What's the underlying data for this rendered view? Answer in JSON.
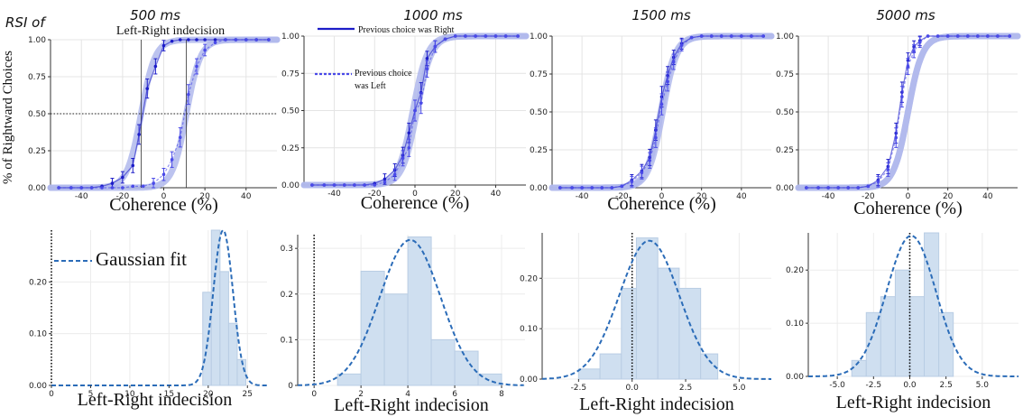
{
  "header": {
    "rsi_label": "RSI of",
    "titles": [
      "500 ms",
      "1000 ms",
      "1500 ms",
      "5000 ms"
    ]
  },
  "annotations": {
    "indecision_label": "Left-Right indecision",
    "legend_right": "Previous choice was Right",
    "legend_left_line1": "Previous choice",
    "legend_left_line2": "was Left",
    "gaussian_fit": "Gaussian fit"
  },
  "colors": {
    "right_series": "#1c1cc8",
    "left_series": "#4a4ae8",
    "fit_band": "#b0b8ec",
    "hist_fill": "#cfdff0",
    "hist_edge": "#b9cde4",
    "gauss": "#2b6cb8"
  },
  "chart_data": [
    {
      "type": "line",
      "panel": "psych",
      "rsi": "500 ms",
      "xlabel": "Coherence (%)",
      "ylabel": "% of Rightward Choices",
      "xlim": [
        -55,
        55
      ],
      "ylim": [
        0,
        1
      ],
      "xticks": [
        -40,
        -20,
        0,
        20,
        40
      ],
      "yticks": [
        "0.00",
        "0.25",
        "0.50",
        "0.75",
        "1.00"
      ],
      "grid": true,
      "shift": 11,
      "series": [
        {
          "name": "Previous choice was Right",
          "style": "solid",
          "x": [
            -51,
            -45,
            -40,
            -35,
            -30,
            -25,
            -20,
            -15,
            -12,
            -8,
            -4,
            0,
            4,
            8,
            12,
            16,
            20,
            25,
            30,
            35,
            40,
            45,
            51
          ],
          "y": [
            0.0,
            0.0,
            0.0,
            0.0,
            0.01,
            0.03,
            0.07,
            0.15,
            0.36,
            0.67,
            0.82,
            0.96,
            0.99,
            1.0,
            1.0,
            1.0,
            1.0,
            1.0,
            1.0,
            1.0,
            1.0,
            1.0,
            1.0
          ]
        },
        {
          "name": "Previous choice was Left",
          "style": "dashed",
          "x": [
            -51,
            -45,
            -40,
            -35,
            -30,
            -25,
            -20,
            -15,
            -10,
            -5,
            0,
            4,
            8,
            12,
            16,
            20,
            25,
            30,
            35,
            40,
            45,
            51
          ],
          "y": [
            0.0,
            0.0,
            0.0,
            0.0,
            0.0,
            0.0,
            0.0,
            0.01,
            0.01,
            0.03,
            0.09,
            0.19,
            0.34,
            0.63,
            0.82,
            0.93,
            0.98,
            1.0,
            1.0,
            1.0,
            1.0,
            1.0
          ]
        }
      ]
    },
    {
      "type": "line",
      "panel": "psych",
      "rsi": "1000 ms",
      "xlabel": "Coherence (%)",
      "ylabel": "",
      "xlim": [
        -55,
        55
      ],
      "ylim": [
        0,
        1
      ],
      "xticks": [
        -40,
        -20,
        0,
        20,
        40
      ],
      "yticks": [
        "0.00",
        "0.25",
        "0.50",
        "0.75",
        "1.00"
      ],
      "grid": true,
      "shift": 2,
      "series": [
        {
          "name": "Previous choice was Right",
          "style": "solid",
          "x": [
            -51,
            -45,
            -40,
            -35,
            -30,
            -25,
            -20,
            -15,
            -10,
            -6,
            -3,
            0,
            3,
            6,
            10,
            15,
            20,
            25,
            30,
            35,
            40,
            45,
            51
          ],
          "y": [
            0.0,
            0.0,
            0.0,
            0.0,
            0.0,
            0.0,
            0.01,
            0.04,
            0.1,
            0.2,
            0.35,
            0.5,
            0.62,
            0.85,
            0.93,
            0.98,
            1.0,
            1.0,
            1.0,
            1.0,
            1.0,
            1.0,
            1.0
          ]
        },
        {
          "name": "Previous choice was Left",
          "style": "dashed",
          "x": [
            -51,
            -45,
            -40,
            -35,
            -30,
            -25,
            -20,
            -15,
            -10,
            -6,
            -3,
            0,
            3,
            6,
            10,
            15,
            20,
            25,
            30,
            35,
            40,
            45,
            51
          ],
          "y": [
            0.0,
            0.0,
            0.0,
            0.0,
            0.0,
            0.0,
            0.0,
            0.02,
            0.07,
            0.18,
            0.25,
            0.5,
            0.55,
            0.78,
            0.93,
            0.98,
            1.0,
            1.0,
            1.0,
            1.0,
            1.0,
            1.0,
            1.0
          ]
        }
      ]
    },
    {
      "type": "line",
      "panel": "psych",
      "rsi": "1500 ms",
      "xlabel": "Coherence (%)",
      "ylabel": "",
      "xlim": [
        -55,
        55
      ],
      "ylim": [
        0,
        1
      ],
      "xticks": [
        -40,
        -20,
        0,
        20,
        40
      ],
      "yticks": [
        "0.00",
        "0.25",
        "0.50",
        "0.75",
        "1.00"
      ],
      "grid": true,
      "shift": 1,
      "series": [
        {
          "name": "Previous choice was Right",
          "style": "solid",
          "x": [
            -51,
            -45,
            -40,
            -35,
            -30,
            -25,
            -20,
            -15,
            -10,
            -6,
            -3,
            0,
            3,
            6,
            10,
            15,
            20,
            25,
            30,
            35,
            40,
            45,
            51
          ],
          "y": [
            0.0,
            0.0,
            0.0,
            0.0,
            0.0,
            0.0,
            0.01,
            0.05,
            0.11,
            0.2,
            0.38,
            0.6,
            0.74,
            0.86,
            0.95,
            0.99,
            1.0,
            1.0,
            1.0,
            1.0,
            1.0,
            1.0,
            1.0
          ]
        },
        {
          "name": "Previous choice was Left",
          "style": "dashed",
          "x": [
            -51,
            -45,
            -40,
            -35,
            -30,
            -25,
            -20,
            -15,
            -10,
            -6,
            -3,
            0,
            3,
            6,
            10,
            15,
            20,
            25,
            30,
            35,
            40,
            45,
            51
          ],
          "y": [
            0.0,
            0.0,
            0.0,
            0.0,
            0.0,
            0.0,
            0.01,
            0.04,
            0.1,
            0.18,
            0.33,
            0.55,
            0.7,
            0.83,
            0.94,
            0.99,
            1.0,
            1.0,
            1.0,
            1.0,
            1.0,
            1.0,
            1.0
          ]
        }
      ]
    },
    {
      "type": "line",
      "panel": "psych",
      "rsi": "5000 ms",
      "xlabel": "Coherence (%)",
      "ylabel": "",
      "xlim": [
        -55,
        55
      ],
      "ylim": [
        0,
        1
      ],
      "xticks": [
        -40,
        -20,
        0,
        20,
        40
      ],
      "yticks": [
        "0.00",
        "0.25",
        "0.50",
        "0.75",
        "1.00"
      ],
      "grid": true,
      "shift": 0,
      "series": [
        {
          "name": "Previous choice was Right",
          "style": "solid",
          "x": [
            -51,
            -45,
            -40,
            -35,
            -30,
            -25,
            -20,
            -15,
            -10,
            -6,
            -3,
            0,
            3,
            6,
            10,
            15,
            20,
            25,
            30,
            35,
            40,
            45,
            51
          ],
          "y": [
            0.0,
            0.0,
            0.0,
            0.0,
            0.0,
            0.0,
            0.01,
            0.05,
            0.14,
            0.36,
            0.63,
            0.84,
            0.93,
            0.97,
            1.0,
            1.0,
            1.0,
            1.0,
            1.0,
            1.0,
            1.0,
            1.0,
            1.0
          ]
        },
        {
          "name": "Previous choice was Left",
          "style": "dashed",
          "x": [
            -51,
            -45,
            -40,
            -35,
            -30,
            -25,
            -20,
            -15,
            -10,
            -6,
            -3,
            0,
            3,
            6,
            10,
            15,
            20,
            25,
            30,
            35,
            40,
            45,
            51
          ],
          "y": [
            0.0,
            0.0,
            0.0,
            0.0,
            0.0,
            0.0,
            0.01,
            0.04,
            0.12,
            0.33,
            0.6,
            0.8,
            0.9,
            0.96,
            1.0,
            1.0,
            1.0,
            1.0,
            1.0,
            1.0,
            1.0,
            1.0,
            1.0
          ]
        }
      ]
    },
    {
      "type": "bar",
      "panel": "hist",
      "rsi": "500 ms",
      "xlabel": "Left-Right indecision",
      "xlim": [
        0,
        27.5
      ],
      "ylim": [
        0,
        0.3
      ],
      "xticks": [
        0,
        5,
        10,
        15,
        20,
        25
      ],
      "yticks": [
        0.0,
        0.1,
        0.2
      ],
      "ytick_labels": [
        "0.00",
        "0.10",
        "0.20"
      ],
      "bin_edges": [
        19.3,
        20.4,
        21.5,
        22.6,
        23.7,
        24.8
      ],
      "values": [
        0.18,
        0.3,
        0.22,
        0.12,
        0.05
      ],
      "gauss": {
        "mu": 21.9,
        "sigma": 1.25
      },
      "zero_line": 0
    },
    {
      "type": "bar",
      "panel": "hist",
      "rsi": "1000 ms",
      "xlabel": "Left-Right indecision",
      "xlim": [
        -0.7,
        9.0
      ],
      "ylim": [
        0,
        0.33
      ],
      "xticks": [
        0,
        2,
        4,
        6,
        8
      ],
      "yticks": [
        0.0,
        0.1,
        0.2,
        0.3
      ],
      "ytick_labels": [
        "0",
        "0.1",
        "0.2",
        "0.3"
      ],
      "bin_edges": [
        1.0,
        2.0,
        3.0,
        4.0,
        5.0,
        6.0,
        7.0,
        8.0
      ],
      "values": [
        0.025,
        0.25,
        0.2,
        0.325,
        0.1,
        0.075,
        0.025
      ],
      "gauss": {
        "mu": 4.1,
        "sigma": 1.3
      },
      "zero_line": 0
    },
    {
      "type": "bar",
      "panel": "hist",
      "rsi": "1500 ms",
      "xlabel": "Left-Right indecision",
      "xlim": [
        -4.2,
        6.5
      ],
      "ylim": [
        0,
        0.29
      ],
      "xticks": [
        -2.5,
        0.0,
        2.5,
        5.0
      ],
      "yticks": [
        0.0,
        0.1,
        0.2
      ],
      "ytick_labels": [
        "0.00",
        "0.10",
        "0.20"
      ],
      "bin_edges": [
        -2.5,
        -1.5,
        -0.5,
        0.2,
        1.2,
        2.2,
        3.2,
        4.0
      ],
      "values": [
        0.02,
        0.05,
        0.18,
        0.28,
        0.22,
        0.18,
        0.05
      ],
      "gauss": {
        "mu": 0.8,
        "sigma": 1.4
      },
      "zero_line": 0
    },
    {
      "type": "bar",
      "panel": "hist",
      "rsi": "5000 ms",
      "xlabel": "Left-Right indecision",
      "xlim": [
        -7.0,
        7.5
      ],
      "ylim": [
        0,
        0.27
      ],
      "xticks": [
        -5.0,
        -2.5,
        0.0,
        2.5,
        5.0
      ],
      "yticks": [
        0.0,
        0.1,
        0.2
      ],
      "ytick_labels": [
        "0.00",
        "0.10",
        "0.20"
      ],
      "bin_edges": [
        -4.0,
        -3.0,
        -2.0,
        -1.0,
        0.0,
        1.0,
        2.0,
        3.0
      ],
      "values": [
        0.03,
        0.12,
        0.15,
        0.2,
        0.15,
        0.27,
        0.12
      ],
      "gauss": {
        "mu": 0.1,
        "sigma": 1.7
      },
      "zero_line": 0
    }
  ]
}
